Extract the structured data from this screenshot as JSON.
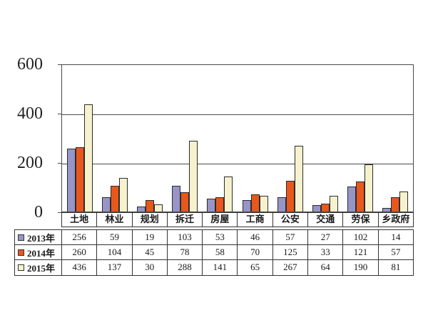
{
  "chart_data": {
    "type": "bar",
    "title": "",
    "xlabel": "",
    "ylabel": "",
    "categories": [
      "土地",
      "林业",
      "规划",
      "拆迁",
      "房屋",
      "工商",
      "公安",
      "交通",
      "劳保",
      "乡政府"
    ],
    "series": [
      {
        "name": "2013年",
        "color": "#9795C7",
        "values": [
          256,
          59,
          19,
          103,
          53,
          46,
          57,
          27,
          102,
          14
        ]
      },
      {
        "name": "2014年",
        "color": "#E8571C",
        "values": [
          260,
          104,
          45,
          78,
          58,
          70,
          125,
          33,
          121,
          57
        ]
      },
      {
        "name": "2015年",
        "color": "#F6F2CE",
        "values": [
          436,
          137,
          30,
          288,
          141,
          65,
          267,
          64,
          190,
          81
        ]
      }
    ],
    "ylim": [
      0,
      600
    ],
    "yticks": [
      0,
      200,
      400,
      600
    ],
    "grid": true,
    "legend_position": "data-table-left",
    "plot_border_color": "#4a4a4a",
    "bar_border_color": "#2b2b2b",
    "background_color": "#ffffff"
  }
}
